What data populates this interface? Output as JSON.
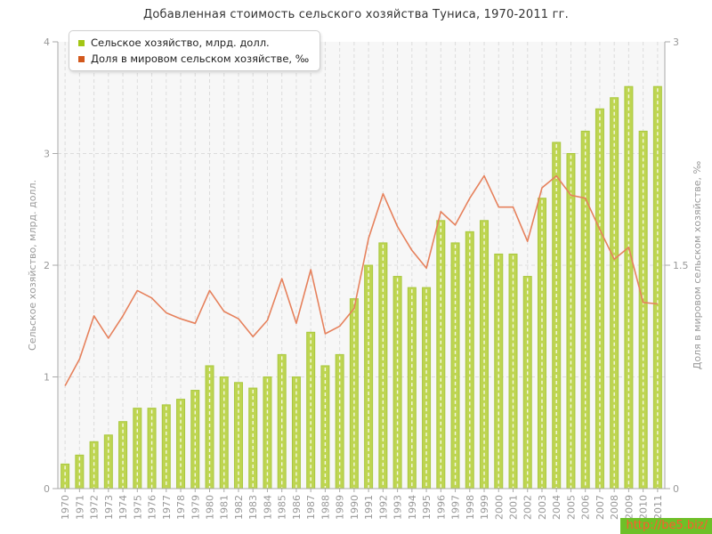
{
  "title": "Добавленная стоимость сельского хозяйства Туниса, 1970-2011 гг.",
  "legend": {
    "items": [
      {
        "label": "Сельское хозяйство, млрд. долл.",
        "swatch_color": "#a3c614"
      },
      {
        "label": "Доля в мировом сельском хозяйстве, ‰",
        "swatch_color": "#d2581c"
      }
    ]
  },
  "watermark": {
    "text": "http://be5.biz/",
    "text_color": "#ff5a2d",
    "bg_color": "#6dc028"
  },
  "colors": {
    "bar_fill": "#bed551",
    "bar_stroke": "#a9c840",
    "bar_center_dash": "rgba(255,255,255,0.85)",
    "line": "#e6815c",
    "grid": "#dcdcdc",
    "axis": "#aaaaaa",
    "tick_text": "#999999",
    "axis_title_text": "#999999",
    "plot_bg": "#f7f7f7"
  },
  "chart_data": {
    "type": "bar",
    "title": "Добавленная стоимость сельского хозяйства Туниса, 1970-2011 гг.",
    "categories": [
      1970,
      1971,
      1972,
      1973,
      1974,
      1975,
      1976,
      1977,
      1978,
      1979,
      1980,
      1981,
      1982,
      1983,
      1984,
      1985,
      1986,
      1987,
      1988,
      1989,
      1990,
      1991,
      1992,
      1993,
      1994,
      1995,
      1996,
      1997,
      1998,
      1999,
      2000,
      2001,
      2002,
      2003,
      2004,
      2005,
      2006,
      2007,
      2008,
      2009,
      2010,
      2011
    ],
    "series": [
      {
        "name": "Сельское хозяйство, млрд. долл.",
        "type": "bar",
        "axis": "left",
        "values": [
          0.22,
          0.3,
          0.42,
          0.48,
          0.6,
          0.72,
          0.72,
          0.75,
          0.8,
          0.88,
          1.1,
          1.0,
          0.95,
          0.9,
          1.0,
          1.2,
          1.0,
          1.4,
          1.1,
          1.2,
          1.7,
          2.0,
          2.2,
          1.9,
          1.8,
          1.8,
          2.4,
          2.2,
          2.3,
          2.4,
          2.1,
          2.1,
          1.9,
          2.6,
          3.1,
          3.0,
          3.2,
          3.4,
          3.5,
          3.6,
          3.2,
          3.6
        ]
      },
      {
        "name": "Доля в мировом сельском хозяйстве, ‰",
        "type": "line",
        "axis": "right",
        "values": [
          0.69,
          0.87,
          1.16,
          1.01,
          1.16,
          1.33,
          1.28,
          1.18,
          1.14,
          1.11,
          1.33,
          1.19,
          1.14,
          1.02,
          1.13,
          1.41,
          1.11,
          1.47,
          1.04,
          1.09,
          1.21,
          1.68,
          1.98,
          1.76,
          1.6,
          1.48,
          1.86,
          1.77,
          1.95,
          2.1,
          1.89,
          1.89,
          1.66,
          2.02,
          2.1,
          1.97,
          1.95,
          1.74,
          1.54,
          1.62,
          1.25,
          1.24
        ]
      }
    ],
    "left_axis": {
      "label": "Сельское хозяйство, млрд. долл.",
      "ticks": [
        "0",
        "1",
        "2",
        "3",
        "4"
      ],
      "range": [
        0,
        4
      ],
      "gridlines": [
        1,
        2,
        3
      ]
    },
    "right_axis": {
      "label": "Доля в мировом сельском хозяйстве, ‰",
      "ticks": [
        "0",
        "1.5",
        "3"
      ],
      "range": [
        0,
        3
      ]
    },
    "x_axis": {
      "tick_labels_rotated": true
    },
    "legend_position": "top-left",
    "grid": "dashed"
  }
}
